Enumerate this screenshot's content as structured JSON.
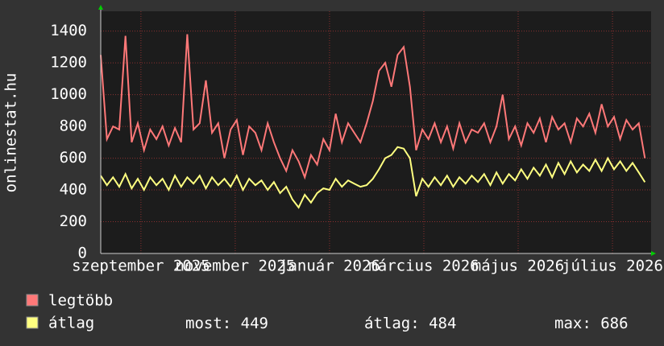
{
  "chart_data": {
    "type": "line",
    "ylabel": "onlinestat.hu",
    "x": [
      0,
      4,
      8,
      12,
      16,
      20,
      24,
      28,
      32,
      36,
      40,
      44,
      48,
      52,
      56,
      60,
      64,
      68,
      72,
      76,
      80,
      84,
      88,
      92,
      96,
      100,
      104,
      108,
      112,
      116,
      120,
      124,
      128,
      132,
      136,
      140,
      144,
      148,
      152,
      156,
      160,
      164,
      168,
      172,
      176,
      180,
      184,
      188,
      192,
      196,
      200,
      204,
      208,
      212,
      216,
      220,
      224,
      228,
      232,
      236,
      240,
      244,
      248,
      252,
      256,
      260,
      264,
      268,
      272,
      276,
      280,
      284,
      288,
      292,
      296,
      300,
      304,
      308,
      312,
      316,
      320,
      324,
      328,
      332,
      336,
      340,
      344,
      348,
      352
    ],
    "series": [
      {
        "name": "legtöbb",
        "color": "#ff7878",
        "values": [
          1250,
          720,
          800,
          780,
          1370,
          700,
          820,
          650,
          780,
          720,
          800,
          680,
          790,
          700,
          1380,
          780,
          820,
          1090,
          760,
          820,
          600,
          780,
          840,
          620,
          800,
          760,
          650,
          820,
          700,
          600,
          520,
          650,
          580,
          480,
          620,
          560,
          720,
          650,
          880,
          700,
          820,
          760,
          700,
          820,
          960,
          1150,
          1200,
          1050,
          1250,
          1300,
          1050,
          650,
          780,
          720,
          820,
          700,
          800,
          660,
          820,
          700,
          780,
          760,
          820,
          700,
          800,
          1000,
          720,
          800,
          680,
          820,
          760,
          850,
          700,
          860,
          780,
          820,
          700,
          850,
          800,
          880,
          760,
          940,
          800,
          860,
          720,
          840,
          780,
          820,
          600
        ]
      },
      {
        "name": "átlag",
        "color": "#ffff80",
        "values": [
          490,
          430,
          480,
          420,
          500,
          410,
          470,
          400,
          480,
          430,
          470,
          400,
          490,
          420,
          480,
          440,
          490,
          410,
          480,
          430,
          470,
          420,
          490,
          400,
          470,
          430,
          460,
          400,
          450,
          380,
          420,
          340,
          290,
          370,
          320,
          380,
          410,
          400,
          470,
          420,
          460,
          440,
          420,
          430,
          470,
          530,
          600,
          620,
          670,
          660,
          600,
          360,
          470,
          420,
          480,
          430,
          490,
          420,
          480,
          440,
          490,
          450,
          500,
          430,
          510,
          440,
          500,
          460,
          530,
          470,
          540,
          490,
          560,
          480,
          570,
          500,
          580,
          510,
          560,
          520,
          590,
          520,
          600,
          530,
          580,
          520,
          570,
          510,
          449
        ]
      }
    ],
    "stats": [
      {
        "label": "most:",
        "value": 449
      },
      {
        "label": "átlag:",
        "value": 484
      },
      {
        "label": "max:",
        "value": 686
      }
    ],
    "xlim": [
      0,
      356
    ],
    "xticks": [
      {
        "value": 26,
        "label": "szeptember 2025"
      },
      {
        "value": 87,
        "label": "november 2025"
      },
      {
        "value": 148,
        "label": "január 2026"
      },
      {
        "value": 209,
        "label": "március 2026"
      },
      {
        "value": 270,
        "label": "május 2026"
      },
      {
        "value": 331,
        "label": "július 2026"
      }
    ],
    "ylim": [
      0,
      1525
    ],
    "yticks": [
      0,
      200,
      400,
      600,
      800,
      1000,
      1200,
      1400
    ],
    "grid": true
  }
}
